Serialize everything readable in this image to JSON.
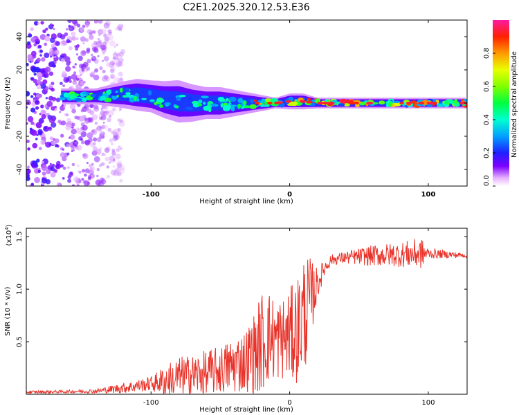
{
  "title": "C2E1.2025.320.12.53.E36",
  "chart_data": [
    {
      "type": "heatmap",
      "xlabel": "Height of straight line (km)",
      "ylabel": "Frequency (Hz)",
      "xlim": [
        -190,
        128
      ],
      "ylim": [
        -50,
        50
      ],
      "xticks": [
        -100,
        0,
        100
      ],
      "xtick_labels": [
        "-100",
        "0",
        "100"
      ],
      "yticks": [
        -40,
        -20,
        0,
        20,
        40
      ],
      "ytick_labels": [
        "-40",
        "-20",
        "0",
        "20",
        "40"
      ],
      "ridge": {
        "x": [
          -160,
          -140,
          -120,
          -110,
          -100,
          -90,
          -80,
          -70,
          -60,
          -50,
          -40,
          -30,
          -20,
          -10,
          0,
          10,
          20,
          40,
          60,
          80,
          100,
          128
        ],
        "center_hz": [
          4,
          4,
          5,
          5,
          4,
          2,
          1,
          0,
          0,
          0,
          0,
          0,
          0,
          0,
          1,
          1,
          0,
          0,
          0,
          0,
          0,
          0
        ],
        "halfwidth_hz": [
          3,
          3,
          5,
          6,
          6,
          7,
          8,
          7,
          6,
          6,
          5,
          4,
          3,
          2,
          3,
          3,
          2,
          2,
          2,
          2,
          2,
          2
        ]
      },
      "scatter_region_x": [
        -190,
        -120
      ],
      "colorbar": {
        "label": "Normalized spectral amplitude",
        "range": [
          0,
          1
        ],
        "ticks": [
          0.0,
          0.2,
          0.4,
          0.6,
          0.8
        ],
        "tick_labels": [
          "0.0",
          "0.2",
          "0.4",
          "0.6",
          "0.8"
        ]
      }
    },
    {
      "type": "line",
      "color": "#e8332a",
      "xlabel": "Height of straight line (km)",
      "ylabel": "SNR (10 * v/v)",
      "exponent_label": "(x10",
      "exponent_power": "4",
      "exponent_close": ")",
      "xlim": [
        -190,
        128
      ],
      "ylim": [
        0,
        15800
      ],
      "xticks": [
        -100,
        0,
        100
      ],
      "xtick_labels": [
        "-100",
        "0",
        "100"
      ],
      "yticks": [
        5000,
        10000,
        15000
      ],
      "ytick_labels": [
        "0.5",
        "1.0",
        "1.5"
      ],
      "envelope": {
        "x": [
          -190,
          -160,
          -140,
          -120,
          -100,
          -90,
          -80,
          -70,
          -60,
          -50,
          -40,
          -32,
          -25,
          -20,
          -15,
          -10,
          -5,
          0,
          5,
          10,
          15,
          20,
          25,
          30,
          40,
          60,
          80,
          95,
          100,
          128
        ],
        "mean": [
          200,
          250,
          300,
          600,
          1000,
          1300,
          1600,
          1800,
          2000,
          2300,
          2800,
          3200,
          4000,
          5000,
          5500,
          5200,
          5300,
          5600,
          6000,
          7500,
          9000,
          10500,
          12000,
          12800,
          13000,
          13200,
          13300,
          13400,
          13400,
          13200
        ],
        "amplitude": [
          150,
          150,
          200,
          500,
          700,
          1500,
          2000,
          2000,
          2200,
          2300,
          2800,
          3000,
          4000,
          5000,
          4500,
          4000,
          4000,
          4500,
          5000,
          6000,
          4000,
          1500,
          800,
          500,
          600,
          1000,
          1200,
          1500,
          500,
          200
        ]
      }
    }
  ]
}
